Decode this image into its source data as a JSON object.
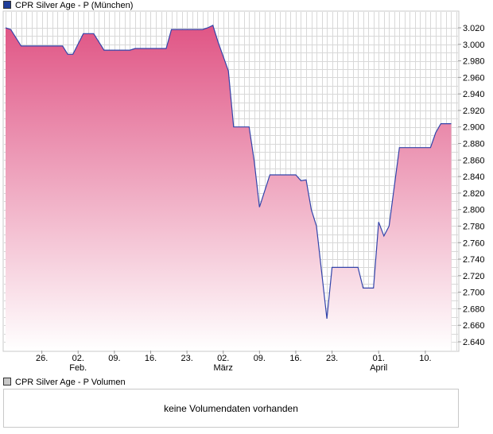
{
  "legend_main": "CPR Silver Age - P (München)",
  "legend_volume": "CPR Silver Age - P Volumen",
  "volume_message": "keine Volumendaten vorhanden",
  "colors": {
    "line": "#3344aa",
    "fill_top": "#e05585",
    "fill_bottom": "#ffffff",
    "grid": "#d8d8d8"
  },
  "chart_data": {
    "type": "area",
    "title": "",
    "xlabel": "",
    "ylabel": "",
    "ylim": [
      2.625,
      3.04
    ],
    "y_ticks": [
      "3.020",
      "3.000",
      "2.980",
      "2.960",
      "2.940",
      "2.920",
      "2.900",
      "2.880",
      "2.860",
      "2.840",
      "2.820",
      "2.800",
      "2.780",
      "2.760",
      "2.740",
      "2.720",
      "2.700",
      "2.680",
      "2.660",
      "2.640"
    ],
    "x_ticks": [
      {
        "label": "26.",
        "sub": "",
        "t": 7
      },
      {
        "label": "02.",
        "sub": "Feb.",
        "t": 14
      },
      {
        "label": "09.",
        "sub": "",
        "t": 21
      },
      {
        "label": "16.",
        "sub": "",
        "t": 28
      },
      {
        "label": "23.",
        "sub": "",
        "t": 35
      },
      {
        "label": "02.",
        "sub": "März",
        "t": 42
      },
      {
        "label": "09.",
        "sub": "",
        "t": 49
      },
      {
        "label": "16.",
        "sub": "",
        "t": 56
      },
      {
        "label": "23.",
        "sub": "",
        "t": 63
      },
      {
        "label": "01.",
        "sub": "April",
        "t": 72
      },
      {
        "label": "10.",
        "sub": "",
        "t": 81
      }
    ],
    "t_range": [
      0,
      87
    ],
    "points": [
      [
        0,
        3.02
      ],
      [
        1,
        3.018
      ],
      [
        3,
        2.998
      ],
      [
        6,
        2.998
      ],
      [
        9,
        2.998
      ],
      [
        11,
        2.998
      ],
      [
        12,
        2.988
      ],
      [
        13,
        2.988
      ],
      [
        15,
        3.013
      ],
      [
        17,
        3.013
      ],
      [
        19,
        2.993
      ],
      [
        22,
        2.993
      ],
      [
        24,
        2.993
      ],
      [
        25,
        2.995
      ],
      [
        28,
        2.995
      ],
      [
        31,
        2.995
      ],
      [
        32,
        3.018
      ],
      [
        35,
        3.018
      ],
      [
        38,
        3.018
      ],
      [
        39,
        3.02
      ],
      [
        40,
        3.023
      ],
      [
        41,
        3.003
      ],
      [
        43,
        2.968
      ],
      [
        44,
        2.9
      ],
      [
        46,
        2.9
      ],
      [
        47,
        2.9
      ],
      [
        48,
        2.858
      ],
      [
        49,
        2.803
      ],
      [
        51,
        2.842
      ],
      [
        54,
        2.842
      ],
      [
        56,
        2.842
      ],
      [
        57,
        2.835
      ],
      [
        58,
        2.836
      ],
      [
        59,
        2.8
      ],
      [
        60,
        2.78
      ],
      [
        62,
        2.668
      ],
      [
        63,
        2.73
      ],
      [
        66,
        2.73
      ],
      [
        68,
        2.73
      ],
      [
        69,
        2.705
      ],
      [
        71,
        2.705
      ],
      [
        72,
        2.785
      ],
      [
        73,
        2.768
      ],
      [
        74,
        2.78
      ],
      [
        76,
        2.875
      ],
      [
        78,
        2.875
      ],
      [
        81,
        2.875
      ],
      [
        82,
        2.875
      ],
      [
        83,
        2.893
      ],
      [
        84,
        2.904
      ],
      [
        86,
        2.904
      ]
    ]
  }
}
